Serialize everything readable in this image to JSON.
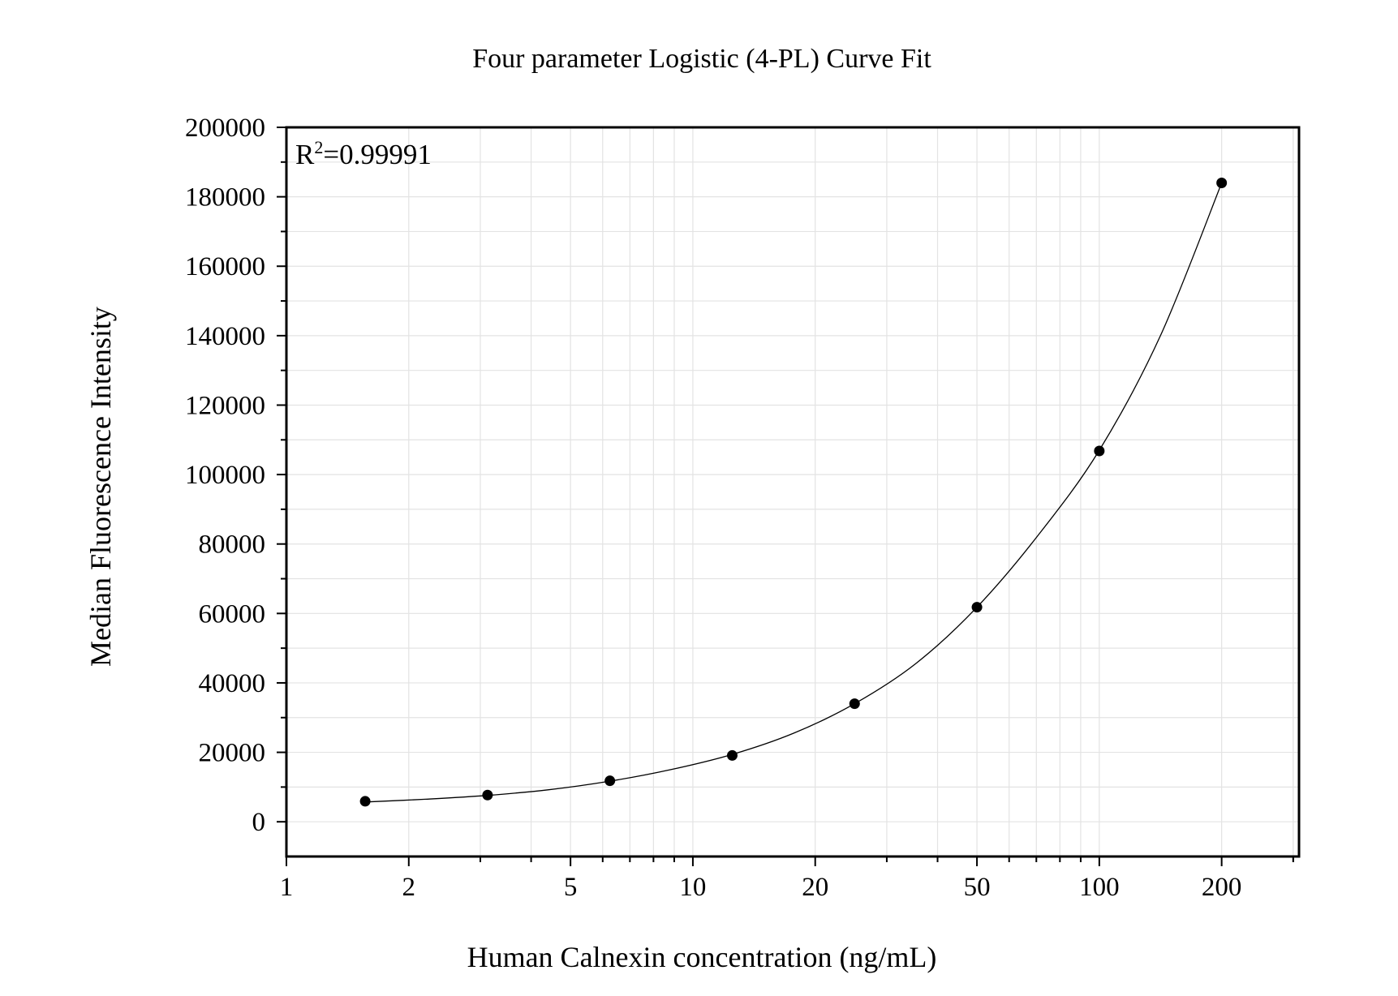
{
  "chart_data": {
    "type": "scatter",
    "title": "Four parameter Logistic (4-PL) Curve Fit",
    "xlabel": "Human Calnexin concentration (ng/mL)",
    "ylabel": "Median Fluorescence Intensity",
    "x_scale": "log",
    "xlim": [
      1,
      310
    ],
    "ylim": [
      -10000,
      200000
    ],
    "x_ticks": [
      1,
      2,
      5,
      10,
      20,
      50,
      100,
      200
    ],
    "x_tick_labels": [
      "1",
      "2",
      "5",
      "10",
      "20",
      "50",
      "100",
      "200"
    ],
    "y_ticks": [
      0,
      20000,
      40000,
      60000,
      80000,
      100000,
      120000,
      140000,
      160000,
      180000,
      200000
    ],
    "y_tick_labels": [
      "0",
      "20000",
      "40000",
      "60000",
      "80000",
      "100000",
      "120000",
      "140000",
      "160000",
      "180000",
      "200000"
    ],
    "grid": true,
    "annotation": {
      "prefix": "R",
      "superscript": "2",
      "suffix": "=0.99991"
    },
    "series": [
      {
        "points": [
          {
            "x": 1.5625,
            "y": 5900
          },
          {
            "x": 3.125,
            "y": 7700
          },
          {
            "x": 6.25,
            "y": 11800
          },
          {
            "x": 12.5,
            "y": 19100
          },
          {
            "x": 25,
            "y": 34000
          },
          {
            "x": 50,
            "y": 61800
          },
          {
            "x": 100,
            "y": 106800
          },
          {
            "x": 200,
            "y": 184000
          }
        ],
        "marker_color": "#000000"
      }
    ],
    "fit_curve": [
      {
        "x": 1.5625,
        "y": 5700
      },
      {
        "x": 2.2,
        "y": 6500
      },
      {
        "x": 3.125,
        "y": 7600
      },
      {
        "x": 4.4,
        "y": 9200
      },
      {
        "x": 6.25,
        "y": 11700
      },
      {
        "x": 8.8,
        "y": 15000
      },
      {
        "x": 12.5,
        "y": 19400
      },
      {
        "x": 17.7,
        "y": 25500
      },
      {
        "x": 25,
        "y": 34000
      },
      {
        "x": 35.4,
        "y": 45600
      },
      {
        "x": 50,
        "y": 61800
      },
      {
        "x": 70.7,
        "y": 82500
      },
      {
        "x": 100,
        "y": 107000
      },
      {
        "x": 141.4,
        "y": 140000
      },
      {
        "x": 200,
        "y": 184000
      }
    ],
    "colors": {
      "axis": "#000000",
      "grid": "#e3e3e3",
      "curve": "#000000",
      "marker": "#000000"
    }
  }
}
